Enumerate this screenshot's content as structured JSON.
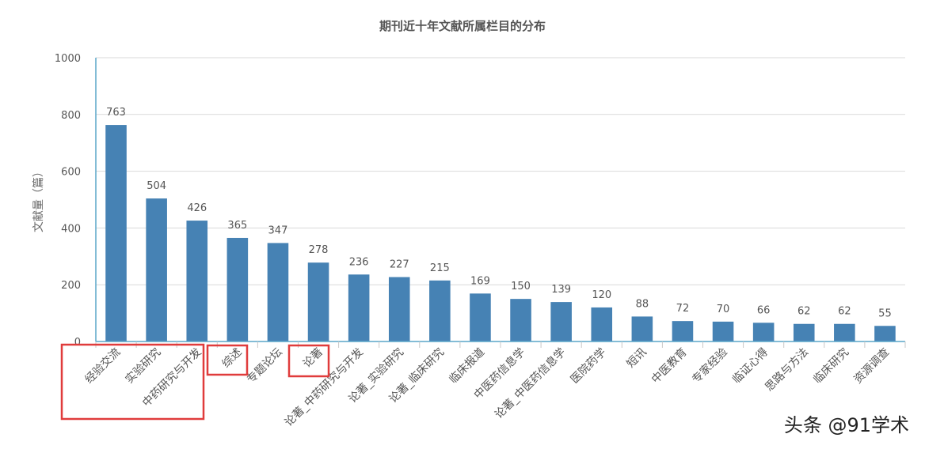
{
  "chart_data": {
    "type": "bar",
    "title": "期刊近十年文献所属栏目的分布",
    "xlabel": "",
    "ylabel": "文献量（篇）",
    "ylim": [
      0,
      1000
    ],
    "yticks": [
      0,
      200,
      400,
      600,
      800,
      1000
    ],
    "grid": true,
    "legend": null,
    "bar_color": "#4682b4",
    "categories": [
      "经验交流",
      "实验研究",
      "中药研究与开发",
      "综述",
      "专题论坛",
      "论著",
      "论著_中药研究与开发",
      "论著_实验研究",
      "论著_临床研究",
      "临床报道",
      "中医药信息学",
      "论著_中医药信息学",
      "医院药学",
      "短讯",
      "中医教育",
      "专家经验",
      "临证心得",
      "思路与方法",
      "临床研究",
      "资源调查"
    ],
    "values": [
      763,
      504,
      426,
      365,
      347,
      278,
      236,
      227,
      215,
      169,
      150,
      139,
      120,
      88,
      72,
      70,
      66,
      62,
      62,
      55
    ],
    "data_labels": true,
    "annotations": [
      {
        "type": "highlight-box",
        "color": "#e03c3c",
        "covers": [
          "经验交流",
          "实验研究",
          "中药研究与开发"
        ]
      },
      {
        "type": "highlight-box",
        "color": "#e03c3c",
        "covers": [
          "综述"
        ]
      },
      {
        "type": "highlight-box",
        "color": "#e03c3c",
        "covers": [
          "论著"
        ]
      }
    ]
  },
  "watermark": "头条 @91学术",
  "colors": {
    "bar": "#4682b4",
    "axis": "#5aa5c8",
    "grid": "#d9d9d9",
    "highlight": "#e03c3c",
    "text": "#555555"
  }
}
